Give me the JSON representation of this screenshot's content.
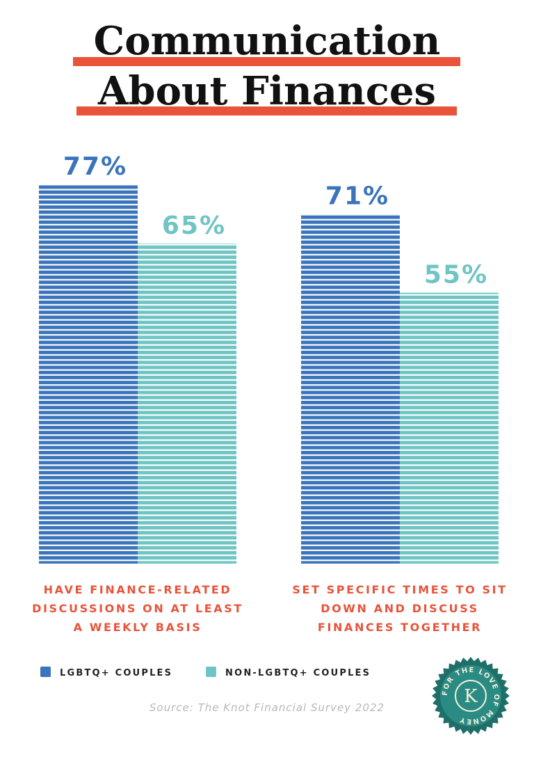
{
  "chart_data": {
    "type": "bar",
    "title": [
      "Communication",
      "About Finances"
    ],
    "categories": [
      "HAVE FINANCE-RELATED DISCUSSIONS ON AT LEAST A WEEKLY BASIS",
      "SET SPECIFIC TIMES TO SIT DOWN AND DISCUSS FINANCES TOGETHER"
    ],
    "series": [
      {
        "name": "LGBTQ+ COUPLES",
        "color": "#3a74bb",
        "values": [
          77,
          71
        ],
        "value_labels": [
          "77%",
          "71%"
        ]
      },
      {
        "name": "NON-LGBTQ+ COUPLES",
        "color": "#6fc4c4",
        "values": [
          65,
          55
        ],
        "value_labels": [
          "65%",
          "55%"
        ]
      }
    ],
    "source": "Source: The Knot Financial Survey 2022"
  },
  "badge": {
    "text": "FOR THE LOVE OF MONEY",
    "monogram": "K"
  }
}
